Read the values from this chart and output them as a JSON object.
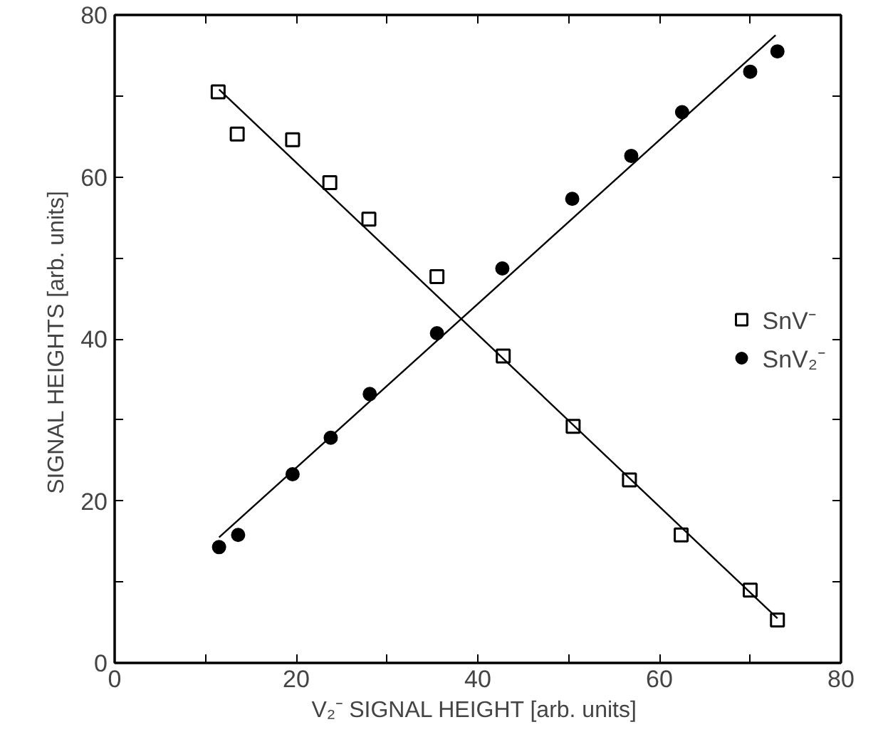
{
  "chart_data": {
    "type": "scatter",
    "xlabel": "V₂⁻ SIGNAL HEIGHT  [arb. units]",
    "ylabel": "SIGNAL HEIGHTS  [arb. units]",
    "xlim": [
      0,
      80
    ],
    "ylim": [
      0,
      80
    ],
    "xticks": [
      0,
      {
        "value": 10,
        "label": null
      },
      20,
      {
        "value": 30,
        "label": null
      },
      40,
      {
        "value": 50,
        "label": null
      },
      60,
      {
        "value": 70,
        "label": null
      },
      80
    ],
    "yticks": [
      0,
      {
        "value": 10,
        "label": null
      },
      20,
      {
        "value": 30,
        "label": null
      },
      40,
      {
        "value": 50,
        "label": null
      },
      60,
      {
        "value": 70,
        "label": null
      },
      80
    ],
    "grid": false,
    "legend": "right",
    "series": [
      {
        "name": "SnV⁻",
        "color": "#000000",
        "marker": "square",
        "x": [
          11.4,
          13.5,
          19.6,
          23.7,
          28.0,
          35.5,
          42.8,
          50.5,
          56.7,
          62.4,
          70.0,
          73.0
        ],
        "values": [
          70.5,
          65.3,
          64.6,
          59.3,
          54.8,
          47.7,
          37.9,
          29.2,
          22.6,
          15.8,
          9.0,
          5.3
        ]
      },
      {
        "name": "SnV₂⁻",
        "color": "#000000",
        "marker": "circle",
        "x": [
          11.5,
          13.6,
          19.6,
          23.8,
          28.1,
          35.5,
          42.7,
          50.4,
          56.9,
          62.5,
          70.0,
          73.0
        ],
        "values": [
          14.3,
          15.8,
          23.3,
          27.8,
          33.2,
          40.7,
          48.7,
          57.3,
          62.6,
          68.0,
          73.0,
          75.5
        ]
      },
      {
        "type": "line",
        "color": "#000000",
        "x": [
          11.5,
          73.0
        ],
        "values": [
          70.8,
          5.5
        ]
      },
      {
        "type": "line",
        "color": "#000000",
        "x": [
          11.5,
          72.8
        ],
        "values": [
          15.5,
          77.5
        ]
      }
    ]
  }
}
